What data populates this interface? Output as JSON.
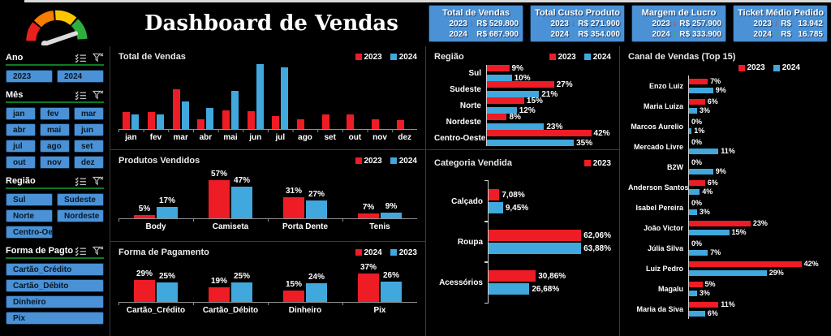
{
  "header": {
    "title": "Dashboard de Vendas",
    "kpis": [
      {
        "title": "Total de Vendas",
        "rows": [
          {
            "year": "2023",
            "dir": "down",
            "value": "R$ 529.800"
          },
          {
            "year": "2024",
            "dir": "up",
            "value": "R$ 687.900"
          }
        ]
      },
      {
        "title": "Total Custo Produto",
        "rows": [
          {
            "year": "2023",
            "dir": "down",
            "value": "R$ 271.900"
          },
          {
            "year": "2024",
            "dir": "up",
            "value": "R$ 354.000"
          }
        ]
      },
      {
        "title": "Margem de Lucro",
        "rows": [
          {
            "year": "2023",
            "dir": "down",
            "value": "R$ 257.900"
          },
          {
            "year": "2024",
            "dir": "up",
            "value": "R$ 333.900"
          }
        ]
      },
      {
        "title": "Ticket Médio Pedido",
        "rows": [
          {
            "year": "2023",
            "dir": "down",
            "value": "R$   13.942"
          },
          {
            "year": "2024",
            "dir": "up",
            "value": "R$   16.785"
          }
        ]
      }
    ]
  },
  "sidebar": {
    "slicers": [
      {
        "label": "Ano",
        "cols": 2,
        "buttons": [
          "2023",
          "2024"
        ]
      },
      {
        "label": "Mês",
        "cols": 3,
        "buttons": [
          "jan",
          "fev",
          "mar",
          "abr",
          "mai",
          "jun",
          "jul",
          "ago",
          "set",
          "out",
          "nov",
          "dez"
        ]
      },
      {
        "label": "Região",
        "cols": 2,
        "buttons": [
          "Sul",
          "Sudeste",
          "Norte",
          "Nordeste",
          "Centro-Oe..."
        ]
      },
      {
        "label": "Forma de Pagto",
        "cols": 1,
        "buttons": [
          "Cartão_Crédito",
          "Cartão_Débito",
          "Dinheiro",
          "Pix"
        ]
      }
    ]
  },
  "colors": {
    "red": "#ee1c25",
    "blue": "#41a8dd",
    "button_blue": "#4a91d6",
    "slicer_underline_green": "#0f7a23",
    "gauge": [
      "#e8211d",
      "#f57c00",
      "#fdc500",
      "#2fae3e"
    ]
  },
  "chart_data": [
    {
      "id": "total_vendas",
      "type": "bar",
      "title": "Total de Vendas",
      "legend": [
        {
          "label": "2023",
          "color": "red"
        },
        {
          "label": "2024",
          "color": "blue"
        }
      ],
      "categories": [
        "jan",
        "fev",
        "mar",
        "abr",
        "mai",
        "jun",
        "jul",
        "ago",
        "set",
        "out",
        "nov",
        "dez"
      ],
      "series": [
        {
          "name": "2023",
          "color": "red",
          "values": [
            26,
            26,
            61,
            15,
            29,
            27,
            20,
            15,
            23,
            23,
            15,
            14
          ]
        },
        {
          "name": "2024",
          "color": "blue",
          "values": [
            23,
            23,
            43,
            32,
            59,
            100,
            95,
            0,
            0,
            0,
            0,
            0
          ]
        }
      ],
      "ylim": [
        0,
        100
      ],
      "xlabel": "",
      "ylabel": "",
      "grid": false,
      "legend_position": "top-right"
    },
    {
      "id": "produtos_vendidos",
      "type": "bar",
      "title": "Produtos Vendidos",
      "legend": [
        {
          "label": "2023",
          "color": "red"
        },
        {
          "label": "2024",
          "color": "blue"
        }
      ],
      "categories": [
        "Body",
        "Camiseta",
        "Porta Dente",
        "Tenis"
      ],
      "series": [
        {
          "name": "2023",
          "color": "red",
          "values": [
            5,
            57,
            31,
            7
          ],
          "labels": [
            "5%",
            "57%",
            "31%",
            "7%"
          ]
        },
        {
          "name": "2024",
          "color": "blue",
          "values": [
            17,
            47,
            27,
            9
          ],
          "labels": [
            "17%",
            "47%",
            "27%",
            "9%"
          ]
        }
      ],
      "ylim": [
        0,
        75
      ],
      "xlabel": "",
      "ylabel": "",
      "grid": false,
      "legend_position": "top-right"
    },
    {
      "id": "forma_pagamento",
      "type": "bar",
      "title": "Forma de Pagamento",
      "legend": [
        {
          "label": "2024",
          "color": "red"
        },
        {
          "label": "2023",
          "color": "blue"
        }
      ],
      "categories": [
        "Cartão_Crédito",
        "Cartão_Débito",
        "Dinheiro",
        "Pix"
      ],
      "series": [
        {
          "name": "2024",
          "color": "red",
          "values": [
            29,
            19,
            15,
            37
          ],
          "labels": [
            "29%",
            "19%",
            "15%",
            "37%"
          ]
        },
        {
          "name": "2023",
          "color": "blue",
          "values": [
            25,
            25,
            24,
            26
          ],
          "labels": [
            "25%",
            "25%",
            "24%",
            "26%"
          ]
        }
      ],
      "ylim": [
        0,
        55
      ],
      "xlabel": "",
      "ylabel": "",
      "grid": false,
      "legend_position": "top-right"
    },
    {
      "id": "regiao",
      "type": "barh",
      "title": "Região",
      "legend": [
        {
          "label": "2023",
          "color": "red"
        },
        {
          "label": "2024",
          "color": "blue"
        }
      ],
      "categories": [
        "Sul",
        "Sudeste",
        "Norte",
        "Nordeste",
        "Centro-Oeste"
      ],
      "series": [
        {
          "name": "2023",
          "color": "red",
          "values": [
            9,
            27,
            15,
            8,
            42
          ],
          "labels": [
            "9%",
            "27%",
            "15%",
            "8%",
            "42%"
          ]
        },
        {
          "name": "2024",
          "color": "blue",
          "values": [
            10,
            21,
            12,
            23,
            35
          ],
          "labels": [
            "10%",
            "21%",
            "12%",
            "23%",
            "35%"
          ]
        }
      ],
      "xlim": [
        0,
        50
      ],
      "xlabel": "",
      "ylabel": "",
      "grid": false,
      "legend_position": "top-right"
    },
    {
      "id": "categoria_vendida",
      "type": "barh",
      "title": "Categoria Vendida",
      "legend": [
        {
          "label": "2023",
          "color": "red"
        }
      ],
      "categories": [
        "Calçado",
        "Roupa",
        "Acessórios"
      ],
      "series": [
        {
          "name": "2023",
          "color": "red",
          "values": [
            7.08,
            62.06,
            30.86
          ],
          "labels": [
            "7,08%",
            "62,06%",
            "30,86%"
          ]
        },
        {
          "name": "2024",
          "color": "blue",
          "values": [
            9.45,
            63.88,
            26.68
          ],
          "labels": [
            "9,45%",
            "63,88%",
            "26,68%"
          ]
        }
      ],
      "xlim": [
        0,
        80
      ],
      "xlabel": "",
      "ylabel": "",
      "grid": false,
      "legend_position": "top-right",
      "axis_ticks": true
    },
    {
      "id": "canal_vendas",
      "type": "barh",
      "title": "Canal de Vendas  (Top 15)",
      "legend": [
        {
          "label": "2023",
          "color": "red"
        },
        {
          "label": "2024",
          "color": "blue"
        }
      ],
      "categories": [
        "Enzo Luiz",
        "Maria Luiza",
        "Marcos Aurelio",
        "Mercado Livre",
        "B2W",
        "Anderson Santos",
        "Isabel Pereira",
        "João Victor",
        "Júlia Silva",
        "Luiz Pedro",
        "Magalu",
        "Maria da Siva"
      ],
      "series": [
        {
          "name": "2023",
          "color": "red",
          "values": [
            7,
            6,
            0,
            0,
            0,
            6,
            0,
            23,
            0,
            42,
            5,
            11
          ],
          "labels": [
            "7%",
            "6%",
            "0%",
            "0%",
            "0%",
            "6%",
            "0%",
            "23%",
            "0%",
            "42%",
            "5%",
            "11%"
          ]
        },
        {
          "name": "2024",
          "color": "blue",
          "values": [
            9,
            3,
            1,
            11,
            9,
            4,
            3,
            15,
            7,
            29,
            3,
            6
          ],
          "labels": [
            "9%",
            "3%",
            "1%",
            "11%",
            "9%",
            "4%",
            "3%",
            "15%",
            "7%",
            "29%",
            "3%",
            "6%"
          ]
        }
      ],
      "xlim": [
        0,
        50
      ],
      "xlabel": "",
      "ylabel": "",
      "grid": false,
      "legend_position": "below-title"
    }
  ]
}
